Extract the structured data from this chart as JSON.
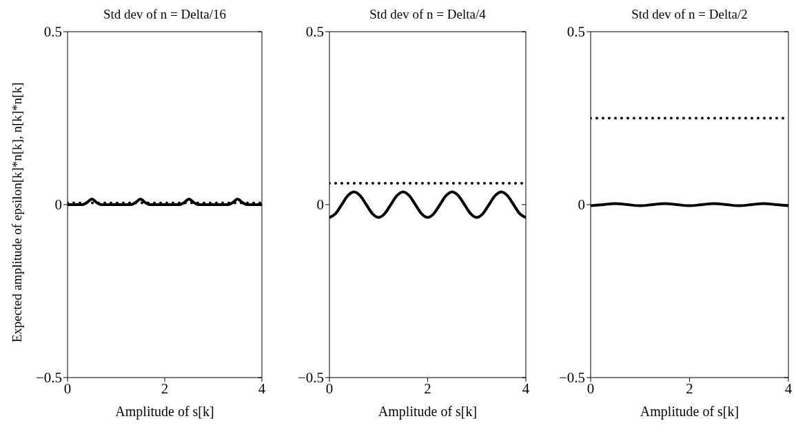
{
  "chart_data": [
    {
      "type": "line",
      "title": "Std dev of n = Delta/16",
      "xlabel": "Amplitude of s[k]",
      "ylabel": "Expected amplitude of epsilon[k]*n[k], n[k]*n[k]",
      "xlim": [
        0,
        4
      ],
      "xticks": [
        0,
        2,
        4
      ],
      "ylim": [
        -0.5,
        0.5
      ],
      "yticks": [
        -0.5,
        0,
        0.5
      ],
      "series": [
        {
          "color": "#000000",
          "line_style": "solid",
          "x": [
            0,
            0.3,
            0.4,
            0.5,
            0.6,
            0.7,
            1.3,
            1.4,
            1.5,
            1.6,
            1.7,
            2.3,
            2.4,
            2.5,
            2.6,
            2.7,
            3.3,
            3.4,
            3.5,
            3.6,
            3.7,
            4
          ],
          "values": [
            0,
            0,
            0.006,
            0.016,
            0.006,
            0,
            0,
            0.006,
            0.016,
            0.006,
            0,
            0,
            0.006,
            0.016,
            0.006,
            0,
            0,
            0.006,
            0.016,
            0.006,
            0,
            0
          ]
        },
        {
          "color": "#000000",
          "line_style": "dotted",
          "x": [
            0,
            4
          ],
          "values": [
            0.005,
            0.005
          ]
        }
      ]
    },
    {
      "type": "line",
      "title": "Std dev of n = Delta/4",
      "xlabel": "Amplitude of s[k]",
      "xlim": [
        0,
        4
      ],
      "xticks": [
        0,
        2,
        4
      ],
      "ylim": [
        -0.5,
        0.5
      ],
      "yticks": [
        -0.5,
        0,
        0.5
      ],
      "series": [
        {
          "color": "#000000",
          "line_style": "solid",
          "x": [
            0,
            0.125,
            0.25,
            0.375,
            0.5,
            0.625,
            0.75,
            0.875,
            1,
            1.125,
            1.25,
            1.375,
            1.5,
            1.625,
            1.75,
            1.875,
            2,
            2.125,
            2.25,
            2.375,
            2.5,
            2.625,
            2.75,
            2.875,
            3,
            3.125,
            3.25,
            3.375,
            3.5,
            3.625,
            3.75,
            3.875,
            4
          ],
          "values": [
            -0.037,
            -0.026,
            0,
            0.026,
            0.037,
            0.026,
            0,
            -0.026,
            -0.037,
            -0.026,
            0,
            0.026,
            0.037,
            0.026,
            0,
            -0.026,
            -0.037,
            -0.026,
            0,
            0.026,
            0.037,
            0.026,
            0,
            -0.026,
            -0.037,
            -0.026,
            0,
            0.026,
            0.037,
            0.026,
            0,
            -0.026,
            -0.037
          ]
        },
        {
          "color": "#000000",
          "line_style": "dotted",
          "x": [
            0,
            4
          ],
          "values": [
            0.062,
            0.062
          ]
        }
      ]
    },
    {
      "type": "line",
      "title": "Std dev of n = Delta/2",
      "xlabel": "Amplitude of s[k]",
      "xlim": [
        0,
        4
      ],
      "xticks": [
        0,
        2,
        4
      ],
      "ylim": [
        -0.5,
        0.5
      ],
      "yticks": [
        -0.5,
        0,
        0.5
      ],
      "series": [
        {
          "color": "#000000",
          "line_style": "solid",
          "x": [
            0,
            0.25,
            0.5,
            0.75,
            1,
            1.25,
            1.5,
            1.75,
            2,
            2.25,
            2.5,
            2.75,
            3,
            3.25,
            3.5,
            3.75,
            4
          ],
          "values": [
            -0.003,
            0,
            0.003,
            0,
            -0.003,
            0,
            0.003,
            0,
            -0.003,
            0,
            0.003,
            0,
            -0.003,
            0,
            0.003,
            0,
            -0.003
          ]
        },
        {
          "color": "#000000",
          "line_style": "dotted",
          "x": [
            0,
            4
          ],
          "values": [
            0.25,
            0.25
          ]
        }
      ]
    }
  ]
}
